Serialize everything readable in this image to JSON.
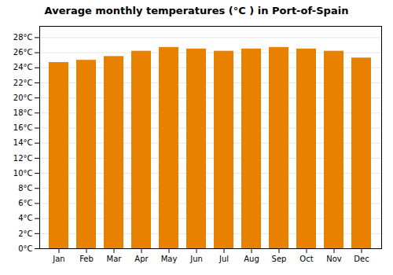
{
  "chart_data": {
    "type": "bar",
    "title": "Average monthly temperatures (°C ) in Port-of-Spain",
    "categories": [
      "Jan",
      "Feb",
      "Mar",
      "Apr",
      "May",
      "Jun",
      "Jul",
      "Aug",
      "Sep",
      "Oct",
      "Nov",
      "Dec"
    ],
    "values": [
      24.7,
      25.0,
      25.5,
      26.2,
      26.7,
      26.5,
      26.2,
      26.5,
      26.7,
      26.5,
      26.2,
      25.3
    ],
    "color": "#E88000",
    "ylim": [
      0,
      29.5
    ],
    "yticks": [
      {
        "value": 0,
        "label": "0°C"
      },
      {
        "value": 2,
        "label": "2°C"
      },
      {
        "value": 4,
        "label": "4°C"
      },
      {
        "value": 6,
        "label": "6°C"
      },
      {
        "value": 8,
        "label": "8°C"
      },
      {
        "value": 10,
        "label": "10°C"
      },
      {
        "value": 12,
        "label": "12°C"
      },
      {
        "value": 14,
        "label": "14°C"
      },
      {
        "value": 16,
        "label": "16°C"
      },
      {
        "value": 18,
        "label": "18°C"
      },
      {
        "value": 20,
        "label": "20°C"
      },
      {
        "value": 22,
        "label": "22°C"
      },
      {
        "value": 24,
        "label": "24°C"
      },
      {
        "value": 26,
        "label": "26°C"
      },
      {
        "value": 28,
        "label": "28°C"
      }
    ],
    "grid": true
  }
}
